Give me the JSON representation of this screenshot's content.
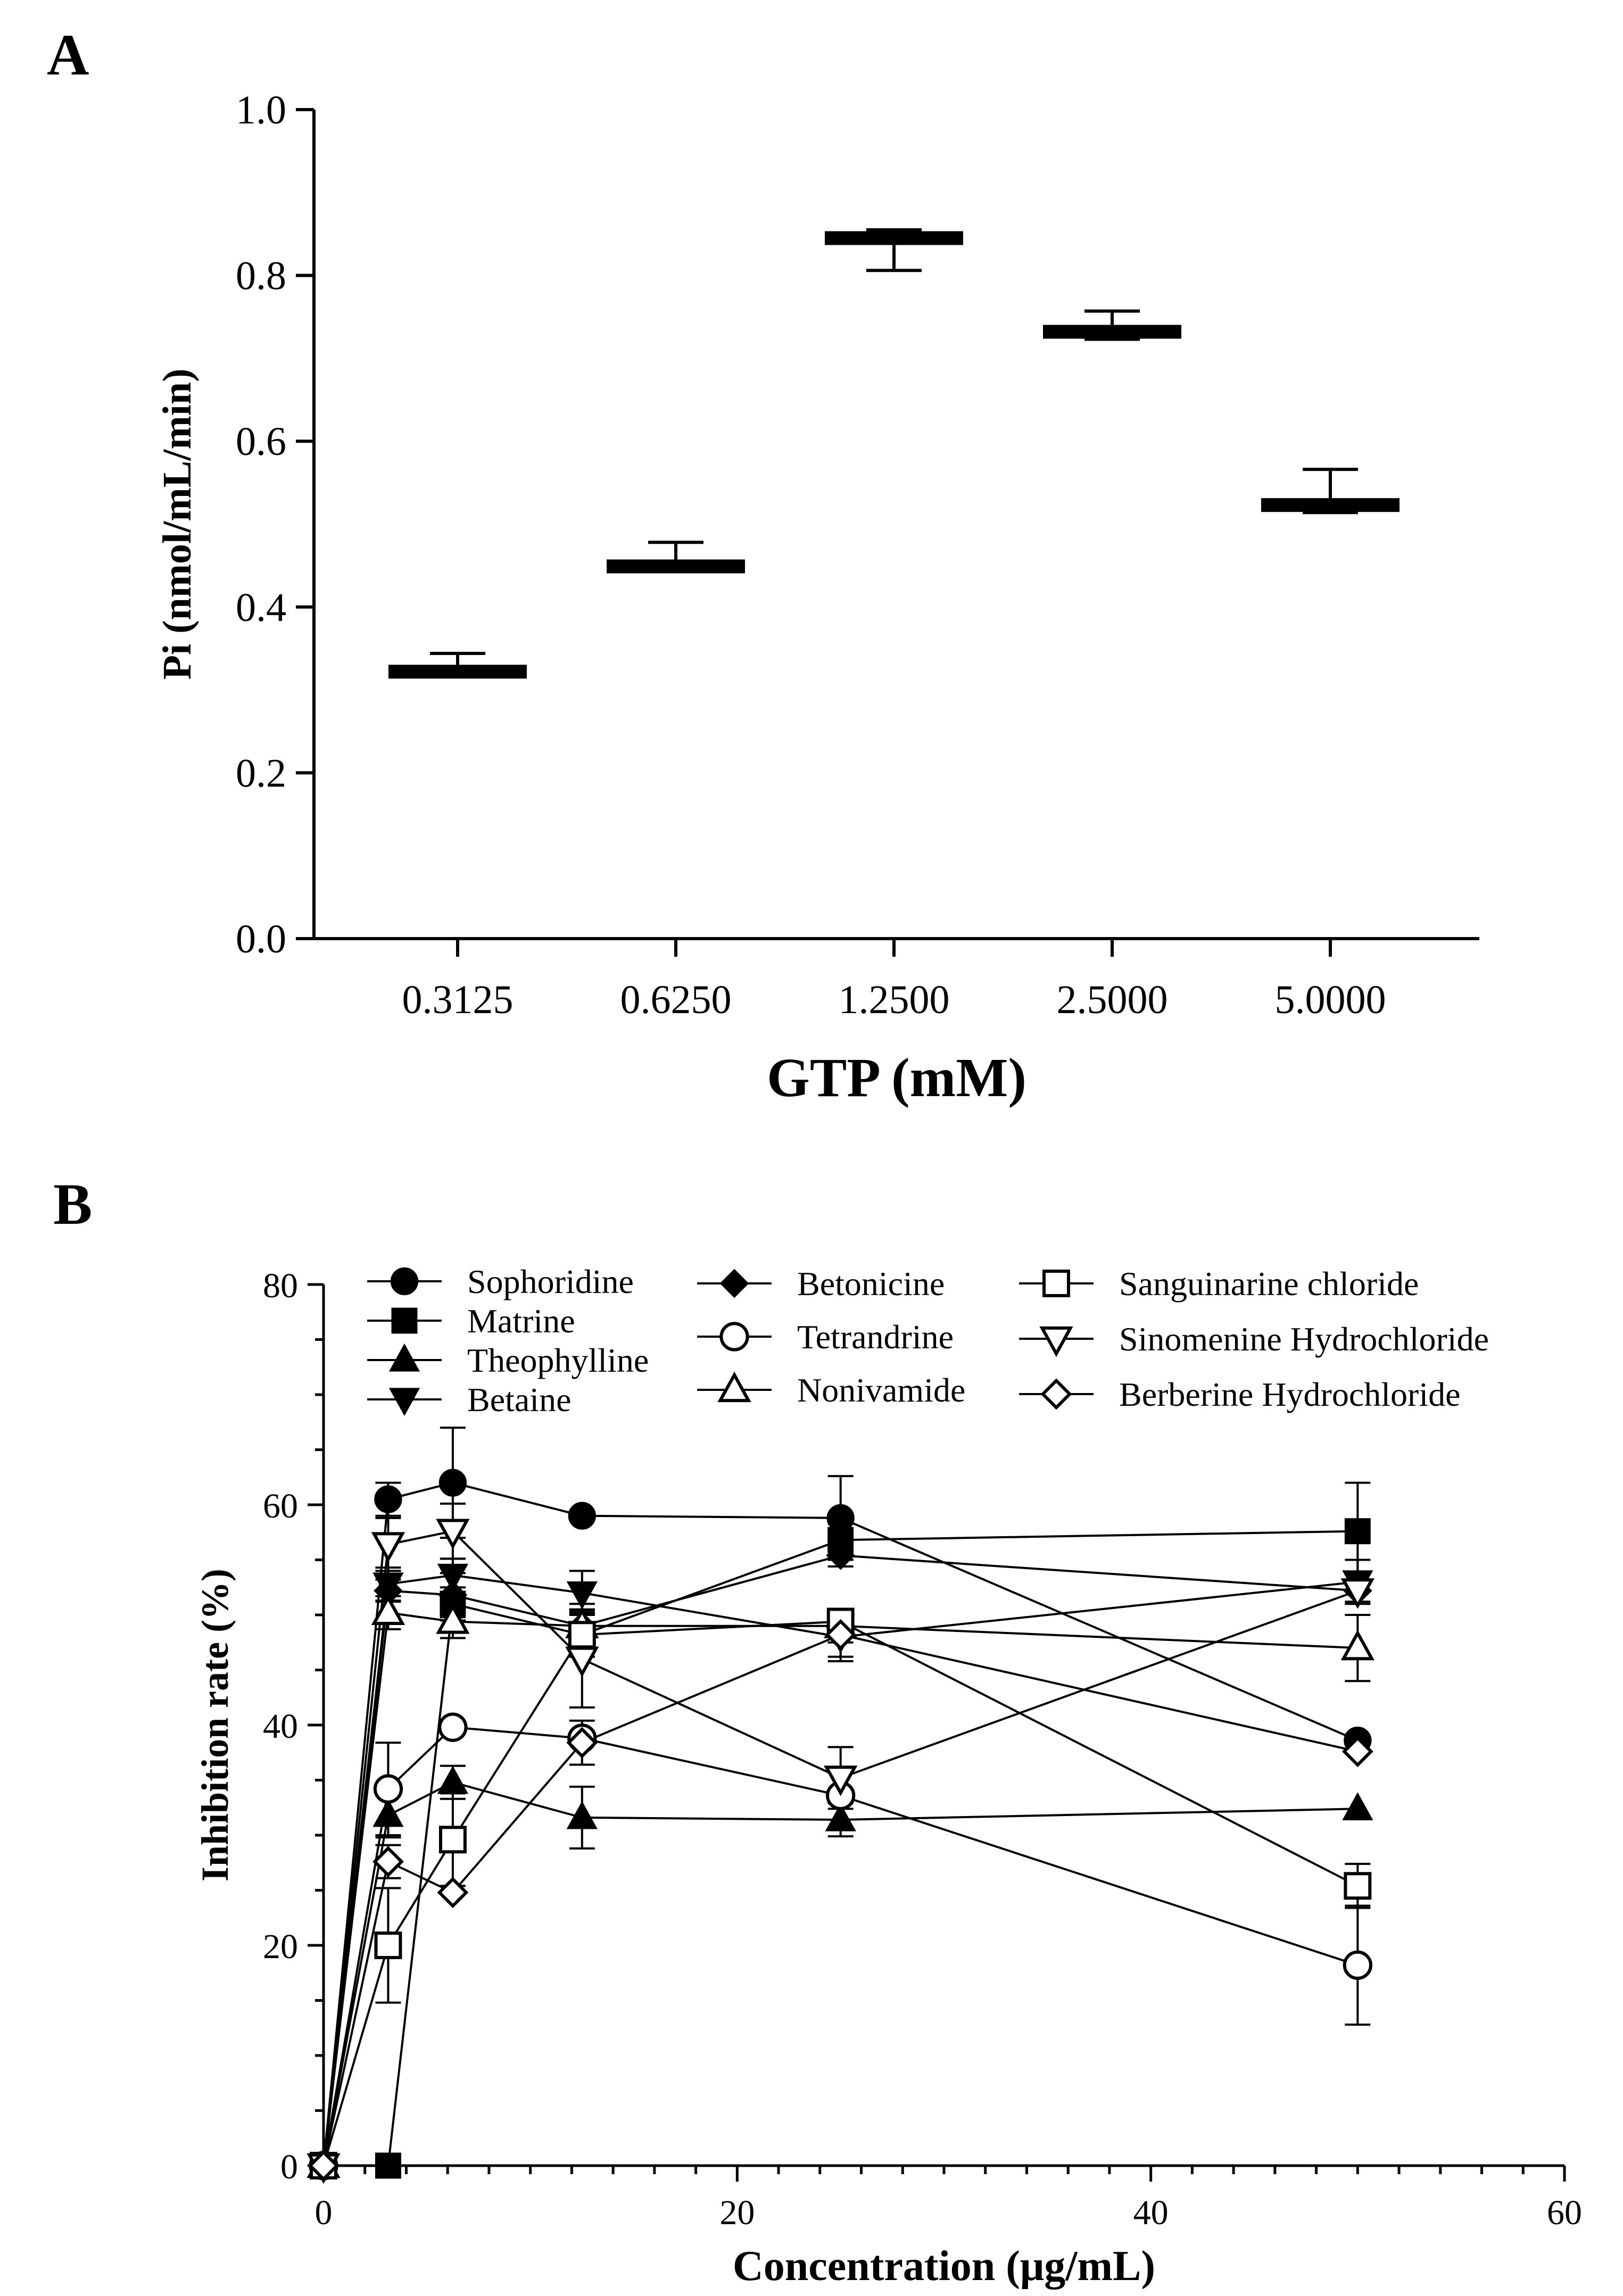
{
  "chart_data": [
    {
      "panel_label": "A",
      "type": "box",
      "title": "",
      "xlabel": "GTP (mM)",
      "ylabel": "Pi (nmol/mL/min)",
      "ylim": [
        0.0,
        1.0
      ],
      "yticks": [
        "0.0",
        "0.2",
        "0.4",
        "0.6",
        "0.8",
        "1.0"
      ],
      "categories": [
        "0.3125",
        "0.6250",
        "1.2500",
        "2.5000",
        "5.0000"
      ],
      "series": [
        {
          "name": "Pi",
          "boxes": [
            {
              "min": 0.316,
              "median": 0.322,
              "max": 0.344
            },
            {
              "min": 0.443,
              "median": 0.449,
              "max": 0.478
            },
            {
              "min": 0.806,
              "median": 0.845,
              "max": 0.855
            },
            {
              "min": 0.723,
              "median": 0.732,
              "max": 0.757
            },
            {
              "min": 0.514,
              "median": 0.523,
              "max": 0.566
            }
          ]
        }
      ]
    },
    {
      "panel_label": "B",
      "type": "line",
      "title": "",
      "xlabel": "Concentration (μg/mL)",
      "ylabel": "Inhibition rate (%)",
      "xlim": [
        0,
        60
      ],
      "ylim": [
        0,
        80
      ],
      "xticks": [
        "0",
        "20",
        "40",
        "60"
      ],
      "yticks": [
        "0",
        "20",
        "40",
        "60",
        "80"
      ],
      "x": [
        0,
        3.125,
        6.25,
        12.5,
        25,
        50
      ],
      "legend_position": "top",
      "series": [
        {
          "name": "Sophoridine",
          "marker": "circle-filled",
          "values": [
            0,
            60.5,
            62.0,
            59.0,
            58.8,
            38.6
          ],
          "errors": [
            0,
            1.5,
            5.0,
            0,
            3.8,
            0
          ]
        },
        {
          "name": "Matrine",
          "marker": "square-filled",
          "values": [
            0,
            0,
            51.0,
            48.2,
            56.8,
            57.6
          ],
          "errors": [
            0,
            0,
            1.5,
            2.0,
            1.5,
            4.4
          ]
        },
        {
          "name": "Theophylline",
          "marker": "triangle-up-filled",
          "values": [
            0,
            31.8,
            34.8,
            31.6,
            31.4,
            32.4
          ],
          "errors": [
            0,
            2.0,
            1.5,
            2.8,
            1.5,
            0
          ]
        },
        {
          "name": "Betaine",
          "marker": "triangle-down-filled",
          "values": [
            0,
            52.8,
            53.6,
            52.0,
            48.0,
            53.0
          ],
          "errors": [
            0,
            1.5,
            1.5,
            2.0,
            2.2,
            2.0
          ]
        },
        {
          "name": "Betonicine",
          "marker": "diamond-filled",
          "values": [
            0,
            52.2,
            51.8,
            49.0,
            55.4,
            52.2
          ],
          "errors": [
            0,
            1.0,
            2.0,
            1.5,
            1.0,
            1.0
          ]
        },
        {
          "name": "Tetrandrine",
          "marker": "circle-open",
          "values": [
            0,
            34.2,
            39.8,
            38.8,
            33.6,
            18.2
          ],
          "errors": [
            0,
            4.2,
            0,
            0,
            0,
            5.4
          ]
        },
        {
          "name": "Nonivamide",
          "marker": "triangle-up-open",
          "values": [
            0,
            50.2,
            49.4,
            49.0,
            49.0,
            47.0
          ],
          "errors": [
            0,
            1.5,
            1.5,
            2.0,
            1.5,
            3.0
          ]
        },
        {
          "name": "Sanguinarine chloride",
          "marker": "square-open",
          "values": [
            0,
            20.0,
            29.6,
            48.2,
            49.4,
            25.4
          ],
          "errors": [
            0,
            5.2,
            4.2,
            2.0,
            1.0,
            2.0
          ]
        },
        {
          "name": "Sinomenine Hydrochloride",
          "marker": "triangle-down-open",
          "values": [
            0,
            56.4,
            57.6,
            46.0,
            35.2,
            52.2
          ],
          "errors": [
            0,
            2.4,
            2.5,
            4.4,
            2.8,
            0
          ]
        },
        {
          "name": "Berberine Hydrochloride",
          "marker": "diamond-open",
          "values": [
            0,
            27.6,
            24.8,
            38.4,
            48.2,
            37.6
          ],
          "errors": [
            0,
            1.5,
            0,
            2.0,
            2.0,
            0
          ]
        }
      ]
    }
  ]
}
